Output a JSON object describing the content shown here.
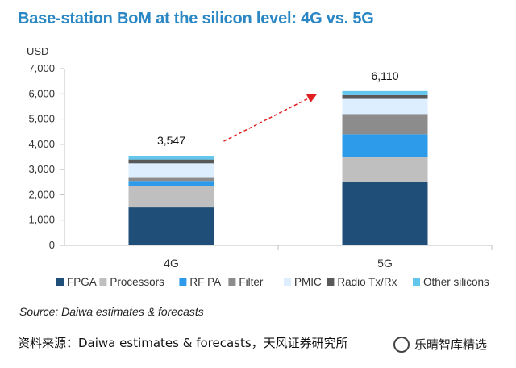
{
  "chart_data": {
    "type": "bar",
    "stacked": true,
    "title": "Base-station BoM at the silicon level: 4G vs. 5G",
    "ylabel": "USD",
    "xlabel": "",
    "ylim": [
      0,
      7000
    ],
    "yticks": [
      0,
      1000,
      2000,
      3000,
      4000,
      5000,
      6000,
      7000
    ],
    "ytick_labels": [
      "0",
      "1,000",
      "2,000",
      "3,000",
      "4,000",
      "5,000",
      "6,000",
      "7,000"
    ],
    "categories": [
      "4G",
      "5G"
    ],
    "totals": [
      3547,
      6110
    ],
    "total_labels": [
      "3,547",
      "6,110"
    ],
    "series": [
      {
        "name": "FPGA",
        "color": "#1f4e79",
        "values": [
          1500,
          2500
        ]
      },
      {
        "name": "Processors",
        "color": "#bfbfbf",
        "values": [
          850,
          1000
        ]
      },
      {
        "name": "RF PA",
        "color": "#2e9bea",
        "values": [
          200,
          900
        ]
      },
      {
        "name": "Filter",
        "color": "#8c8c8c",
        "values": [
          150,
          800
        ]
      },
      {
        "name": "PMIC",
        "color": "#ddeeff",
        "values": [
          550,
          600
        ]
      },
      {
        "name": "Radio Tx/Rx",
        "color": "#595959",
        "values": [
          150,
          150
        ]
      },
      {
        "name": "Other silicons",
        "color": "#63c7ed",
        "values": [
          147,
          160
        ]
      }
    ],
    "grid": false,
    "legend": "bottom",
    "annotation": "arrow from 4G to 5G"
  },
  "source": "Source: Daiwa  estimates & forecasts",
  "footer": "资料来源：Daiwa estimates & forecasts，天风证券研究所",
  "watermark": "乐晴智库精选"
}
